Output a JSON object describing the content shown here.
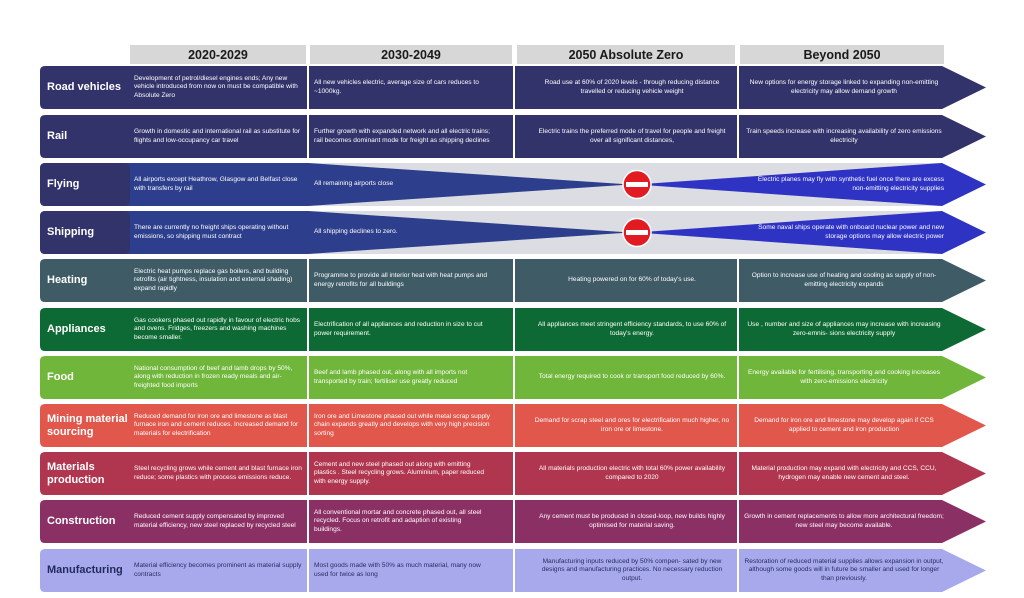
{
  "columns": [
    "2020-2029",
    "2030-2049",
    "2050 Absolute Zero",
    "Beyond 2050"
  ],
  "rows": [
    {
      "id": "road-vehicles",
      "label": "Road vehicles",
      "style": "solid",
      "color": "#33336b",
      "cells": [
        "Development of petrol/diesel engines ends; Any new vehicle introduced from now on must be compatible with Absolute Zero",
        "All new vehicles electric, average size of cars reduces to ~1000kg.",
        "Road use at 60% of 2020 levels - through reducing distance travelled or reducing vehicle weight",
        "New options for energy storage linked to expanding non-emitting electricity may allow demand growth"
      ]
    },
    {
      "id": "rail",
      "label": "Rail",
      "style": "solid",
      "color": "#33336b",
      "cells": [
        "Growth in domestic and international rail as substitute for flights and low-occupancy car travel",
        "Further growth with expanded network and all electric trains; rail becomes dominant mode for freight as shipping declines",
        "Electric trains the preferred mode of travel for people and freight over all significant distances,",
        "Train speeds increase with increasing availability of zero emissions electricity"
      ]
    },
    {
      "id": "flying",
      "label": "Flying",
      "style": "taper",
      "color": "#2d3f8c",
      "beyond_color": "#2e33c4",
      "cells": [
        "All airports except Heathrow, Glasgow and Belfast close with transfers by rail",
        "All remaining airports close",
        "",
        "Electric planes may fly with synthetic fuel once there are excess non-emitting electricity supplies"
      ]
    },
    {
      "id": "shipping",
      "label": "Shipping",
      "style": "taper",
      "color": "#2d3f8c",
      "beyond_color": "#2e33c4",
      "cells": [
        "There are currently no freight ships operating without emissions, so shipping must contract",
        "All shipping declines to zero.",
        "",
        "Some naval ships operate with onboard nuclear power and new storage options may allow electric power"
      ]
    },
    {
      "id": "heating",
      "label": "Heating",
      "style": "solid",
      "color": "#3e5b66",
      "cells": [
        "Electric heat pumps replace gas boilers, and building retrofits (air tightness, insulation and external shading) expand rapidly",
        "Programme to provide all interior heat with heat pumps and energy retrofits for all buildings",
        "Heating powered on for 60% of today's use.",
        "Option to increase use of heating and cooling as supply of non-emitting electricity expands"
      ]
    },
    {
      "id": "appliances",
      "label": "Appliances",
      "style": "solid",
      "color": "#0e6a34",
      "cells": [
        "Gas cookers phased out rapidly in favour of electric hobs and ovens. Fridges, freezers and washing machines become smaller.",
        "Electrification of all appliances and reduction in size to cut power requirement.",
        "All appliances meet stringent efficiency standards, to use 60% of today's energy.",
        "Use , number and size of appliances may increase with increasing zero-emnis- sions electricity supply"
      ]
    },
    {
      "id": "food",
      "label": "Food",
      "style": "solid",
      "color": "#6fb63a",
      "cells": [
        "National consumption of beef and lamb drops by 50%, along with reduction in frozen ready meals and air-freighted food imports",
        "Beef and lamb phased out, along with all imports not transported by train; fertiliser use greatly reduced",
        "Total energy required to cook or transport food reduced by 60%.",
        "Energy available for fertilising, transporting and cooking increases with zero-emissions electricity"
      ]
    },
    {
      "id": "mining-material-sourcing",
      "label": "Mining material sourcing",
      "style": "solid",
      "color": "#e2574c",
      "cells": [
        "Reduced demand for iron ore and limestone as blast furnace iron and cement reduces. Increased demand for materials for electrification",
        "Iron ore and Limestone phased out while metal scrap supply chain expands greatly and develops with very high precision sorting",
        "Demand for scrap steel and ores for electrification much higher, no iron ore or limestone.",
        "Demand for iron ore and limestone may develop again if CCS applied to cement and iron production"
      ]
    },
    {
      "id": "materials-production",
      "label": "Materials production",
      "style": "solid",
      "color": "#b03650",
      "cells": [
        "Steel recycling grows while cement and blast furnace iron reduce; some plastics with process emissions reduce.",
        "Cement and new steel phased out along with emitting plastics . Steel recycling grows. Aluminium, paper reduced with energy supply.",
        "All materials production electric with total 60% power availability compared to 2020",
        "Material production may expand with electricity and CCS, CCU, hydrogen may enable new cement and steel."
      ]
    },
    {
      "id": "construction",
      "label": "Construction",
      "style": "solid",
      "color": "#8b3064",
      "cells": [
        "Reduced cement supply compensated by improved material efficiency, new steel replaced by recycled steel",
        "All conventional mortar and concrete phased out, all steel recycled. Focus on retrofit and adaption of existing buildings.",
        "Any cement must be produced in closed-loop, new builds highly optimised for material saving.",
        "Growth in cement replacements to allow more architectural freedom; new steel may become available."
      ]
    },
    {
      "id": "manufacturing",
      "label": "Manufacturing",
      "style": "solid",
      "color": "#a8a9ec",
      "label_color": "#1f2b5c",
      "cells": [
        "Material efficiency becomes prominent as material supply contracts",
        "Most goods made with 50% as much material, many now used for twice as long",
        "Manufacturing inputs reduced by 50% compen- sated by new designs and manufacturing practices. No necessary reduction output.",
        "Restoration of reduced material supplies allows expansion in output, although some goods will in future be smaller and used for longer than previously."
      ]
    }
  ]
}
